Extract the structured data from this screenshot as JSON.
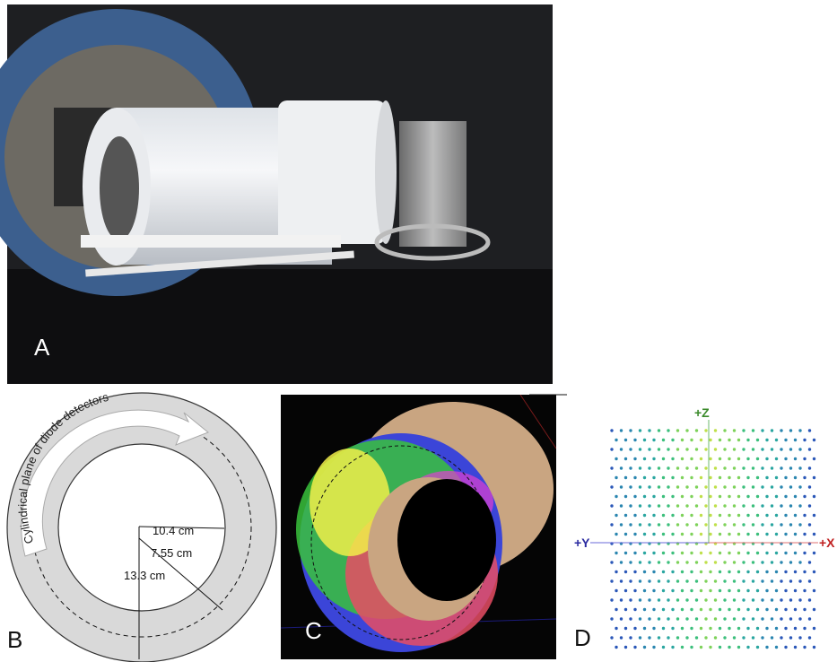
{
  "panels": {
    "a": {
      "label": "A"
    },
    "b": {
      "label": "B",
      "arrow_text": "Cylindrical plane of diode detectors",
      "dimensions": [
        "10.4 cm",
        "7.55 cm",
        "13.3 cm"
      ]
    },
    "c": {
      "label": "C"
    },
    "d": {
      "label": "D",
      "axes": [
        "+Z",
        "+Y",
        "+X"
      ]
    }
  }
}
